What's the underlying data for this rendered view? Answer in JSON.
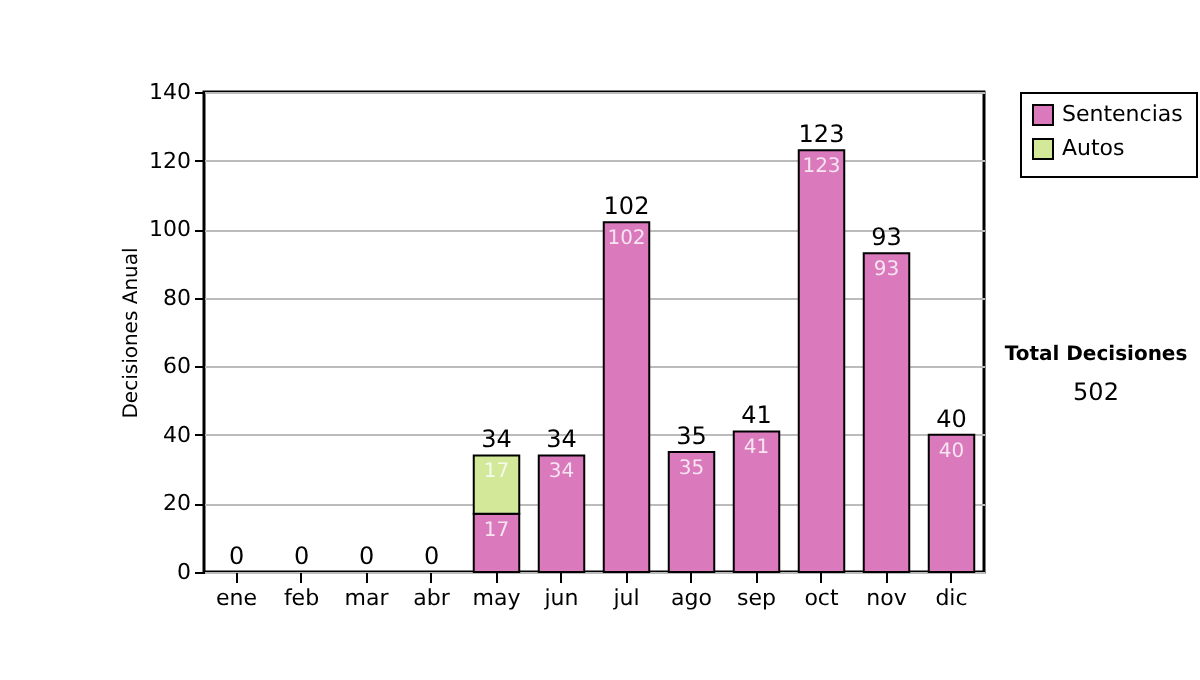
{
  "chart_data": {
    "type": "bar",
    "stacked": true,
    "ylabel": "Decisiones Anual",
    "categories": [
      "ene",
      "feb",
      "mar",
      "abr",
      "may",
      "jun",
      "jul",
      "ago",
      "sep",
      "oct",
      "nov",
      "dic"
    ],
    "series": [
      {
        "name": "Sentencias",
        "color": "#da7abd",
        "values": [
          0,
          0,
          0,
          0,
          17,
          34,
          102,
          35,
          41,
          123,
          93,
          40
        ],
        "value_labels": [
          null,
          null,
          null,
          null,
          "17",
          "34",
          "102",
          "35",
          "41",
          "123",
          "93",
          "40"
        ]
      },
      {
        "name": "Autos",
        "color": "#d4e89a",
        "values": [
          0,
          0,
          0,
          0,
          17,
          0,
          0,
          0,
          0,
          0,
          0,
          0
        ],
        "value_labels": [
          null,
          null,
          null,
          null,
          "17",
          null,
          null,
          null,
          null,
          null,
          null,
          null
        ]
      }
    ],
    "totals": [
      "0",
      "0",
      "0",
      "0",
      "34",
      "34",
      "102",
      "35",
      "41",
      "123",
      "93",
      "40"
    ],
    "ylim": [
      0,
      140
    ],
    "yticks": [
      0,
      20,
      40,
      60,
      80,
      100,
      120,
      140
    ],
    "grid": "y",
    "legend": "right",
    "annotations": [
      "Total Decisiones",
      "502"
    ]
  }
}
